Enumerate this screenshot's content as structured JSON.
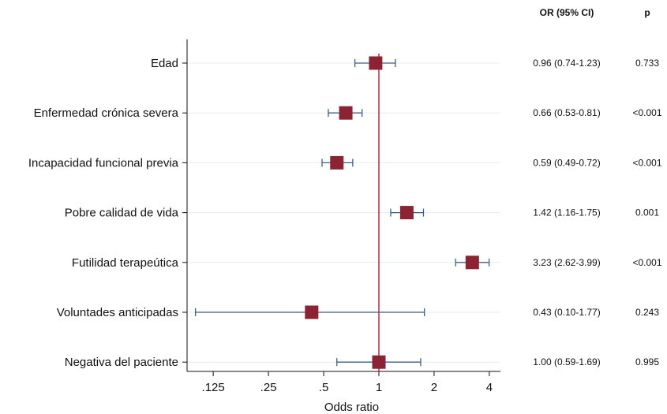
{
  "chart_data": {
    "type": "forest",
    "xlabel": "Odds ratio",
    "xscale": "log",
    "xlim": [
      0.09,
      4.6
    ],
    "xticks": [
      0.125,
      0.25,
      0.5,
      1,
      2,
      4
    ],
    "xtick_labels": [
      ".125",
      ".25",
      ".5",
      "1",
      "2",
      "4"
    ],
    "reference_line": 1,
    "columns": [
      "OR (95% CI)",
      "p"
    ],
    "rows": [
      {
        "label": "Edad",
        "or": 0.96,
        "lo": 0.74,
        "hi": 1.23,
        "ci_text": "0.96 (0.74-1.23)",
        "p": "0.733"
      },
      {
        "label": "Enfermedad crónica severa",
        "or": 0.66,
        "lo": 0.53,
        "hi": 0.81,
        "ci_text": "0.66 (0.53-0.81)",
        "p": "<0.001"
      },
      {
        "label": "Incapacidad funcional previa",
        "or": 0.59,
        "lo": 0.49,
        "hi": 0.72,
        "ci_text": "0.59 (0.49-0.72)",
        "p": "<0.001"
      },
      {
        "label": "Pobre calidad de vida",
        "or": 1.42,
        "lo": 1.16,
        "hi": 1.75,
        "ci_text": "1.42 (1.16-1.75)",
        "p": "0.001"
      },
      {
        "label": "Futilidad terapeútica",
        "or": 3.23,
        "lo": 2.62,
        "hi": 3.99,
        "ci_text": "3.23 (2.62-3.99)",
        "p": "<0.001"
      },
      {
        "label": "Voluntades anticipadas",
        "or": 0.43,
        "lo": 0.1,
        "hi": 1.77,
        "ci_text": "0.43 (0.10-1.77)",
        "p": "0.243"
      },
      {
        "label": "Negativa del paciente",
        "or": 1.0,
        "lo": 0.59,
        "hi": 1.69,
        "ci_text": "1.00 (0.59-1.69)",
        "p": "0.995"
      }
    ],
    "colors": {
      "marker": "#8B2332",
      "ci": "#3F5F82",
      "reference": "#B03040",
      "grid": "#E6ECEC",
      "axis": "#111111"
    }
  }
}
